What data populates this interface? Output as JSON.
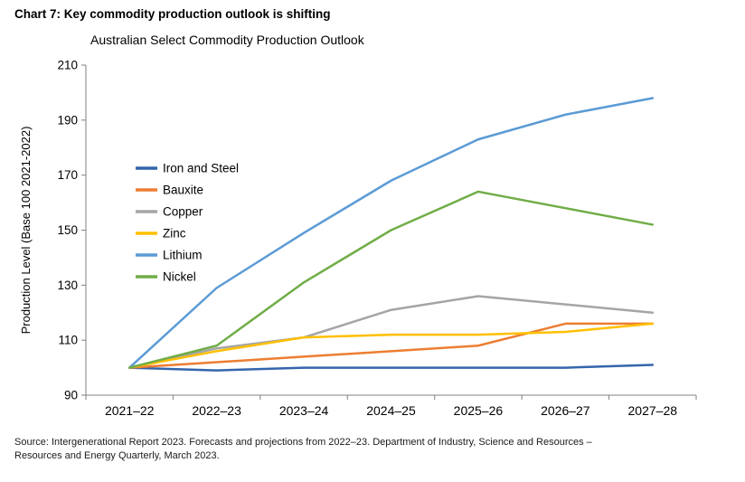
{
  "page": {
    "heading": "Chart 7: Key commodity production outlook is shifting",
    "source_line1": "Source: Intergenerational Report 2023. Forecasts and projections from 2022–23. Department of Industry, Science and Resources –",
    "source_line2": "Resources and Energy Quarterly, March 2023."
  },
  "chart_data": {
    "type": "line",
    "title": "Australian Select Commodity Production Outlook",
    "xlabel": "",
    "ylabel": "Production Level (Base 100 2021-2022)",
    "ylim": [
      90,
      210
    ],
    "ytick_step": 20,
    "grid": false,
    "legend_position": "inside-left",
    "categories": [
      "2021–22",
      "2022–23",
      "2023–24",
      "2024–25",
      "2025–26",
      "2026–27",
      "2027–28"
    ],
    "series": [
      {
        "name": "Iron and Steel",
        "color": "#3465ac",
        "values": [
          100,
          99,
          100,
          100,
          100,
          100,
          101
        ]
      },
      {
        "name": "Bauxite",
        "color": "#ed7d31",
        "values": [
          100,
          102,
          104,
          106,
          108,
          116,
          116
        ]
      },
      {
        "name": "Copper",
        "color": "#a5a5a5",
        "values": [
          100,
          107,
          111,
          121,
          126,
          123,
          120
        ]
      },
      {
        "name": "Zinc",
        "color": "#ffc000",
        "values": [
          100,
          106,
          111,
          112,
          112,
          113,
          116
        ]
      },
      {
        "name": "Lithium",
        "color": "#5b9bd5",
        "values": [
          100,
          129,
          149,
          168,
          183,
          192,
          198
        ]
      },
      {
        "name": "Nickel",
        "color": "#70ad47",
        "values": [
          100,
          108,
          131,
          150,
          164,
          158,
          152
        ]
      }
    ],
    "axis_color": "#808080",
    "text_color": "#000000"
  }
}
